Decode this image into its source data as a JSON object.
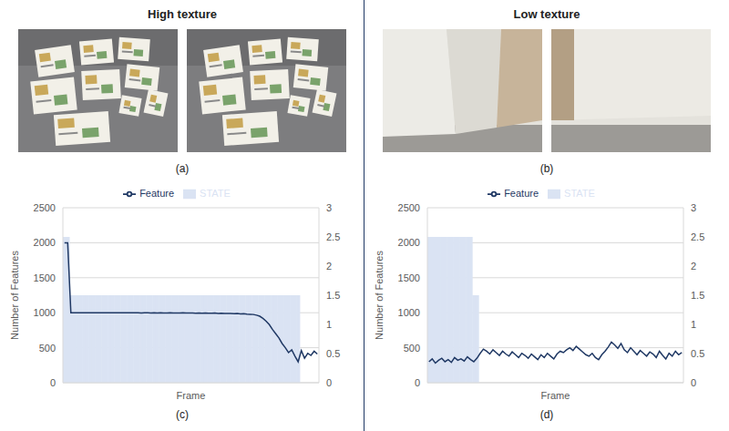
{
  "header": {
    "left": "High texture",
    "right": "Low texture"
  },
  "photo_labels": [
    "(a)",
    "(b)"
  ],
  "chart_data": [
    {
      "type": "bar_line",
      "label": "(c)",
      "x_label": "Frame",
      "y_label": "Number of Features",
      "categories": [
        null,
        null,
        null,
        null,
        null,
        null,
        null,
        null,
        null,
        null,
        null,
        null,
        null,
        null,
        null,
        null,
        null,
        null,
        null,
        null,
        null,
        null,
        null,
        null,
        null,
        null,
        null,
        null,
        null,
        null,
        null,
        null,
        null,
        null,
        null,
        null,
        null,
        null,
        null,
        null,
        null,
        null,
        null,
        null,
        null,
        null,
        null,
        null,
        null,
        null,
        null,
        null,
        null,
        null,
        null,
        null,
        null,
        null,
        null,
        null,
        null,
        null,
        null,
        null,
        null,
        null,
        null,
        null,
        null,
        null,
        null,
        null,
        null,
        null,
        null,
        null,
        null,
        null,
        null,
        null
      ],
      "ylim": [
        0,
        2500
      ],
      "yticks": [
        0,
        500,
        1000,
        1500,
        2000,
        2500
      ],
      "y2lim": [
        0,
        3
      ],
      "y2ticks": [
        0,
        0.5,
        1,
        1.5,
        2,
        2.5,
        3
      ],
      "grid": true,
      "legend": "top",
      "tick_labels": "y",
      "series": [
        {
          "name": "STATE",
          "type": "bar",
          "axis": "y2",
          "color": "#dae3f3",
          "values": [
            2.5,
            2.5,
            1.5,
            1.5,
            1.5,
            1.5,
            1.5,
            1.5,
            1.5,
            1.5,
            1.5,
            1.5,
            1.5,
            1.5,
            1.5,
            1.5,
            1.5,
            1.5,
            1.5,
            1.5,
            1.5,
            1.5,
            1.5,
            1.5,
            1.5,
            1.5,
            1.5,
            1.5,
            1.5,
            1.5,
            1.5,
            1.5,
            1.5,
            1.5,
            1.5,
            1.5,
            1.5,
            1.5,
            1.5,
            1.5,
            1.5,
            1.5,
            1.5,
            1.5,
            1.5,
            1.5,
            1.5,
            1.5,
            1.5,
            1.5,
            1.5,
            1.5,
            1.5,
            1.5,
            1.5,
            1.5,
            1.5,
            1.5,
            1.5,
            1.5,
            1.5,
            1.5,
            1.5,
            1.5,
            1.5,
            1.5,
            1.5,
            1.5,
            1.5,
            1.5,
            1.5,
            1.5,
            1.5,
            1.5,
            0,
            0,
            0,
            0,
            0,
            0
          ]
        },
        {
          "name": "Feature",
          "type": "line",
          "color": "#1f3864",
          "values": [
            2000,
            2000,
            1000,
            1000,
            1000,
            999,
            1000,
            1000,
            998,
            1000,
            1000,
            999,
            1000,
            1000,
            998,
            999,
            1000,
            1000,
            999,
            998,
            1000,
            999,
            998,
            999,
            997,
            998,
            999,
            996,
            998,
            997,
            999,
            996,
            997,
            998,
            995,
            997,
            996,
            998,
            995,
            996,
            997,
            994,
            995,
            993,
            996,
            994,
            992,
            995,
            990,
            993,
            991,
            988,
            990,
            986,
            989,
            984,
            985,
            980,
            978,
            975,
            965,
            950,
            920,
            880,
            830,
            760,
            700,
            640,
            560,
            500,
            430,
            470,
            380,
            300,
            460,
            350,
            420,
            390,
            450,
            410
          ]
        }
      ]
    },
    {
      "type": "bar_line",
      "label": "(d)",
      "x_label": "Frame",
      "y_label": "Number of Features",
      "categories": [
        null,
        null,
        null,
        null,
        null,
        null,
        null,
        null,
        null,
        null,
        null,
        null,
        null,
        null,
        null,
        null,
        null,
        null,
        null,
        null,
        null,
        null,
        null,
        null,
        null,
        null,
        null,
        null,
        null,
        null,
        null,
        null,
        null,
        null,
        null,
        null,
        null,
        null,
        null,
        null,
        null,
        null,
        null,
        null,
        null,
        null,
        null,
        null,
        null,
        null,
        null,
        null,
        null,
        null,
        null,
        null,
        null,
        null,
        null,
        null,
        null,
        null,
        null,
        null,
        null,
        null,
        null,
        null,
        null,
        null,
        null,
        null,
        null,
        null,
        null,
        null,
        null,
        null,
        null,
        null
      ],
      "ylim": [
        0,
        2500
      ],
      "yticks": [
        0,
        500,
        1000,
        1500,
        2000,
        2500
      ],
      "y2lim": [
        0,
        3
      ],
      "y2ticks": [
        0,
        0.5,
        1,
        1.5,
        2,
        2.5,
        3
      ],
      "grid": true,
      "legend": "top",
      "tick_labels": "y",
      "series": [
        {
          "name": "STATE",
          "type": "bar",
          "axis": "y2",
          "color": "#dae3f3",
          "values": [
            2.5,
            2.5,
            2.5,
            2.5,
            2.5,
            2.5,
            2.5,
            2.5,
            2.5,
            2.5,
            2.5,
            2.5,
            2.5,
            2.5,
            1.5,
            1.5,
            0,
            0,
            0,
            0,
            0,
            0,
            0,
            0,
            0,
            0,
            0,
            0,
            0,
            0,
            0,
            0,
            0,
            0,
            0,
            0,
            0,
            0,
            0,
            0,
            0,
            0,
            0,
            0,
            0,
            0,
            0,
            0,
            0,
            0,
            0,
            0,
            0,
            0,
            0,
            0,
            0,
            0,
            0,
            0,
            0,
            0,
            0,
            0,
            0,
            0,
            0,
            0,
            0,
            0,
            0,
            0,
            0,
            0,
            0,
            0,
            0,
            0,
            0,
            0
          ]
        },
        {
          "name": "Feature",
          "type": "line",
          "color": "#1f3864",
          "values": [
            300,
            340,
            280,
            320,
            350,
            300,
            330,
            290,
            360,
            320,
            340,
            310,
            370,
            330,
            300,
            350,
            420,
            480,
            450,
            410,
            470,
            430,
            390,
            450,
            410,
            380,
            440,
            400,
            360,
            420,
            390,
            350,
            410,
            370,
            330,
            400,
            360,
            420,
            380,
            340,
            410,
            450,
            430,
            470,
            500,
            460,
            520,
            480,
            440,
            400,
            380,
            420,
            360,
            330,
            400,
            450,
            510,
            580,
            540,
            490,
            560,
            470,
            430,
            500,
            450,
            400,
            460,
            420,
            380,
            440,
            410,
            360,
            450,
            390,
            340,
            420,
            380,
            450,
            400,
            430
          ]
        }
      ]
    }
  ]
}
